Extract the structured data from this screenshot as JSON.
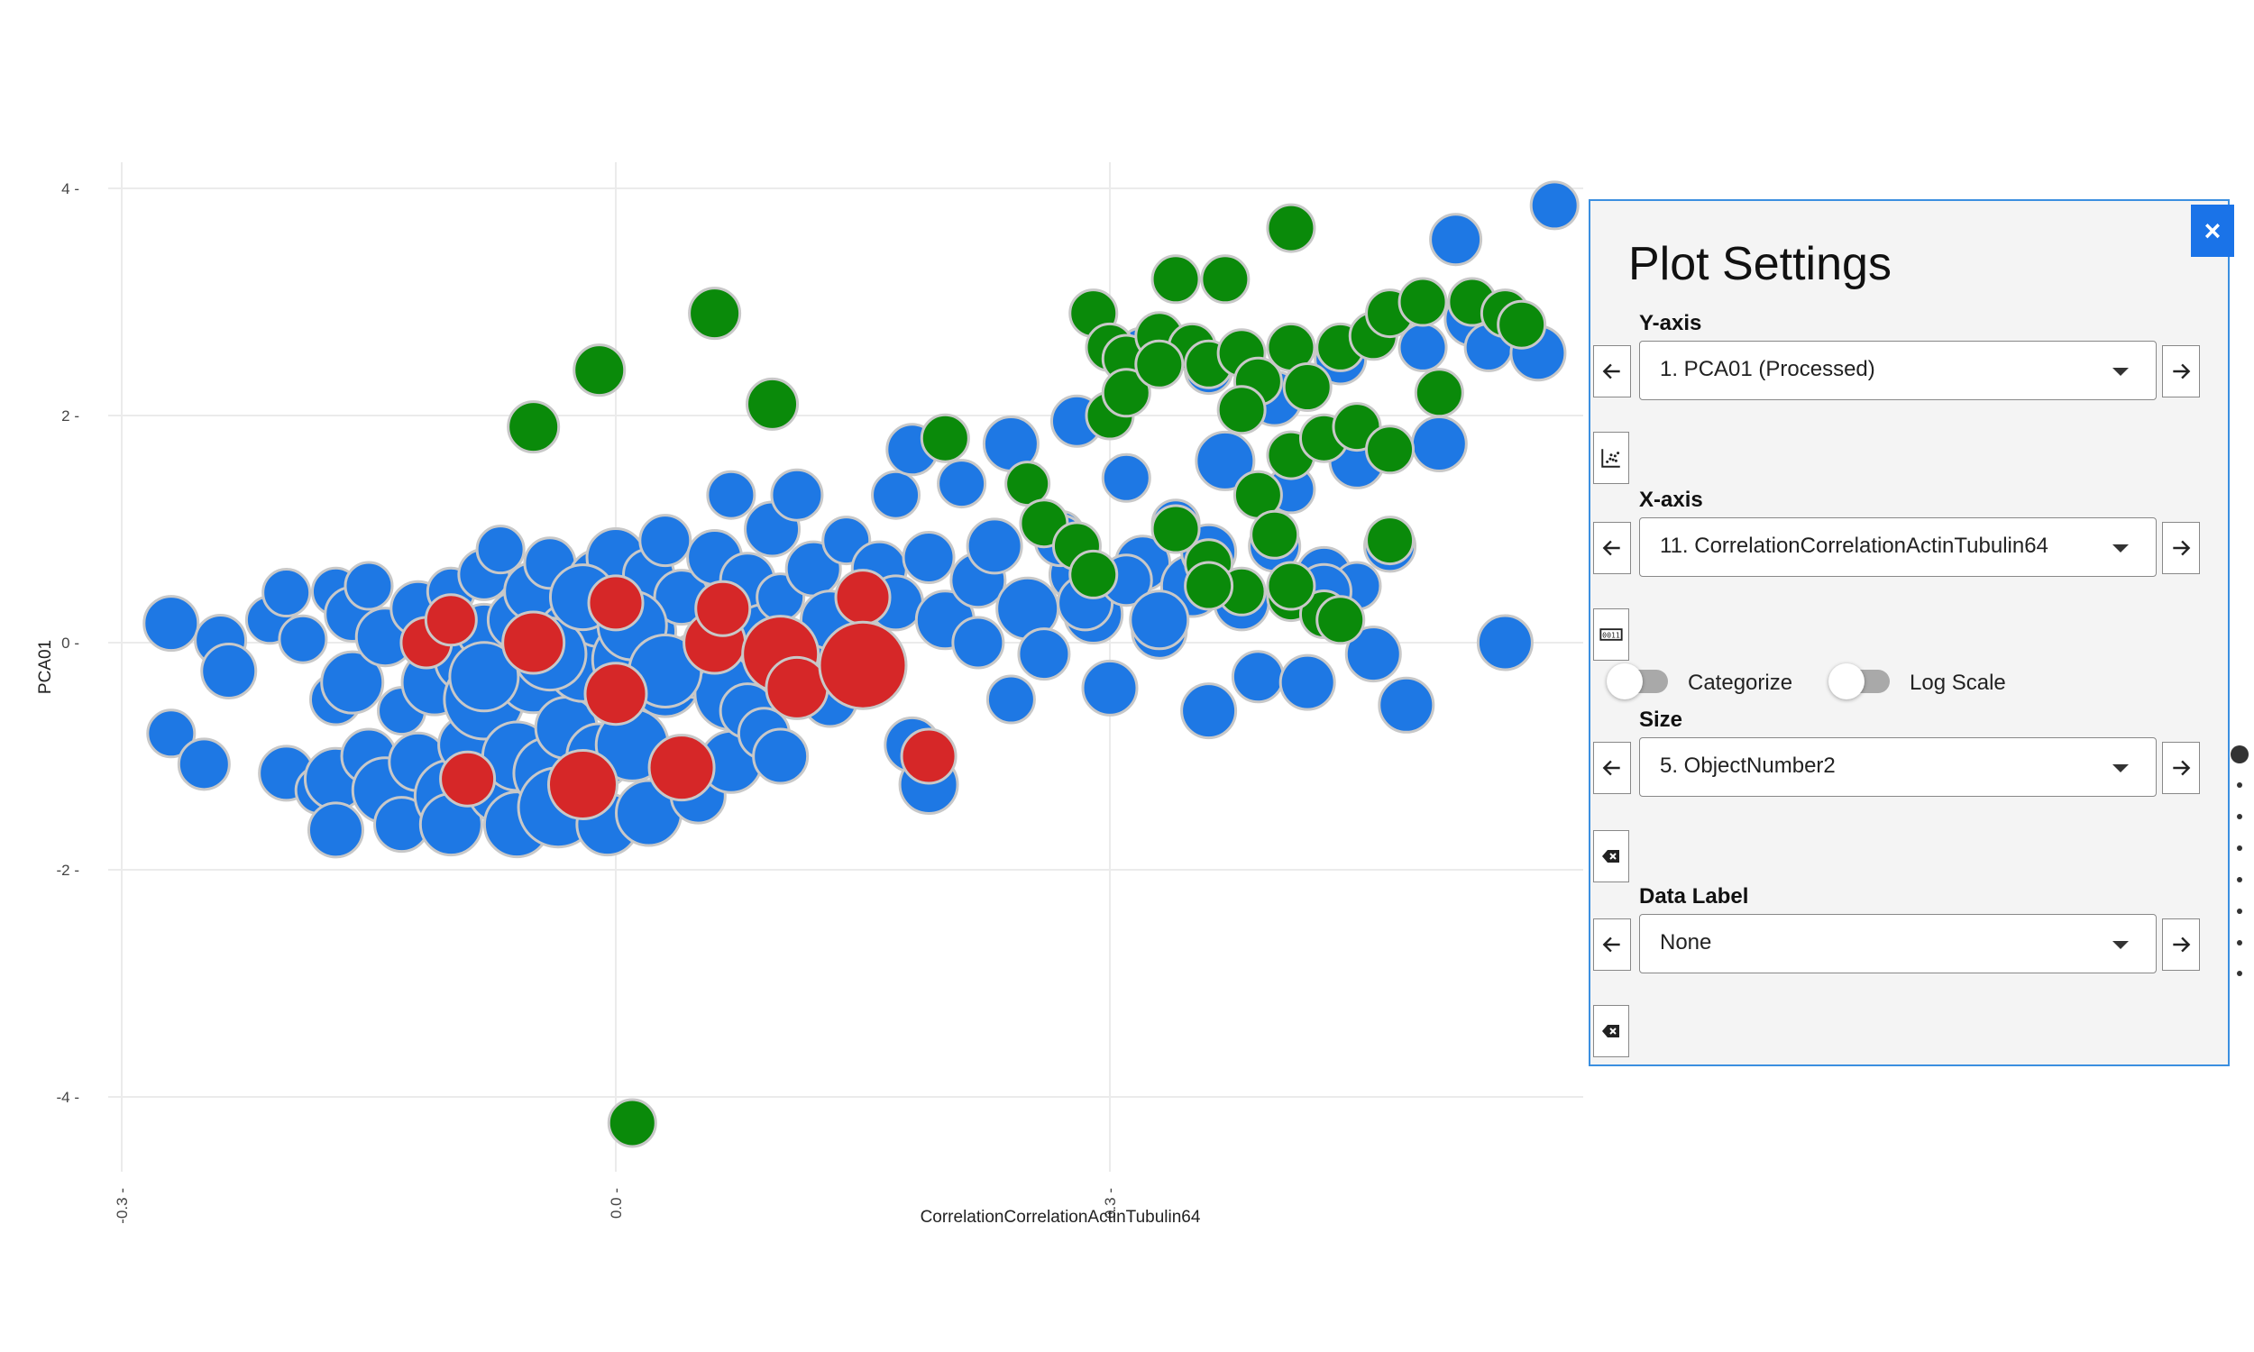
{
  "chart_data": {
    "type": "scatter",
    "xlabel": "CorrelationCorrelationActinTubulin64",
    "ylabel": "PCA01",
    "xlim": [
      -0.31,
      0.6
    ],
    "ylim": [
      -4.8,
      4.2
    ],
    "xticks": [
      -0.3,
      0.0,
      0.3
    ],
    "xtick_labels": [
      "-0.3",
      "0.0",
      "0.3"
    ],
    "yticks": [
      4,
      2,
      0,
      -2,
      -4
    ],
    "ytick_labels": [
      "4",
      "2",
      "0",
      "-2",
      "-4"
    ],
    "grid": true,
    "colors": {
      "blue": "#1e78e4",
      "red": "#d62728",
      "green": "#0a8a0a"
    },
    "points": [
      [
        -0.27,
        0.17,
        30,
        "b"
      ],
      [
        -0.27,
        -0.8,
        26,
        "b"
      ],
      [
        -0.25,
        -1.07,
        28,
        "b"
      ],
      [
        -0.24,
        0.02,
        28,
        "b"
      ],
      [
        -0.235,
        -0.25,
        30,
        "b"
      ],
      [
        -0.21,
        0.2,
        26,
        "b"
      ],
      [
        -0.2,
        0.44,
        26,
        "b"
      ],
      [
        -0.2,
        -1.15,
        30,
        "b"
      ],
      [
        -0.19,
        0.03,
        26,
        "b"
      ],
      [
        -0.18,
        -1.3,
        26,
        "b"
      ],
      [
        -0.17,
        0.45,
        26,
        "b"
      ],
      [
        -0.17,
        -0.5,
        28,
        "b"
      ],
      [
        -0.17,
        -1.2,
        34,
        "b"
      ],
      [
        -0.17,
        -1.65,
        30,
        "b"
      ],
      [
        -0.16,
        0.25,
        30,
        "b"
      ],
      [
        -0.16,
        -0.35,
        34,
        "b"
      ],
      [
        -0.15,
        0.5,
        26,
        "b"
      ],
      [
        -0.15,
        -1.0,
        30,
        "b"
      ],
      [
        -0.14,
        0.05,
        32,
        "b"
      ],
      [
        -0.14,
        -1.3,
        36,
        "b"
      ],
      [
        -0.13,
        -0.6,
        26,
        "b"
      ],
      [
        -0.13,
        -1.6,
        30,
        "b"
      ],
      [
        -0.12,
        0.3,
        30,
        "b"
      ],
      [
        -0.12,
        -1.05,
        32,
        "b"
      ],
      [
        -0.115,
        0.0,
        28,
        "r"
      ],
      [
        -0.11,
        -0.35,
        36,
        "b"
      ],
      [
        -0.1,
        0.45,
        26,
        "b"
      ],
      [
        -0.1,
        -1.35,
        40,
        "b"
      ],
      [
        -0.1,
        -1.6,
        34,
        "b"
      ],
      [
        -0.1,
        0.2,
        28,
        "r"
      ],
      [
        -0.09,
        -0.15,
        36,
        "b"
      ],
      [
        -0.09,
        -0.9,
        32,
        "b"
      ],
      [
        -0.09,
        -1.2,
        30,
        "r"
      ],
      [
        -0.08,
        0.6,
        28,
        "b"
      ],
      [
        -0.08,
        0.1,
        30,
        "b"
      ],
      [
        -0.08,
        -0.5,
        44,
        "b"
      ],
      [
        -0.07,
        0.82,
        26,
        "b"
      ],
      [
        -0.07,
        -1.3,
        36,
        "b"
      ],
      [
        -0.06,
        0.2,
        32,
        "b"
      ],
      [
        -0.06,
        -1.0,
        38,
        "b"
      ],
      [
        -0.06,
        -1.6,
        36,
        "b"
      ],
      [
        -0.05,
        0.0,
        34,
        "r"
      ],
      [
        -0.05,
        0.45,
        32,
        "b"
      ],
      [
        -0.05,
        -0.3,
        40,
        "b"
      ],
      [
        -0.04,
        -1.15,
        40,
        "b"
      ],
      [
        -0.04,
        0.7,
        28,
        "b"
      ],
      [
        -0.035,
        -1.45,
        44,
        "b"
      ],
      [
        -0.03,
        0.1,
        30,
        "b"
      ],
      [
        -0.03,
        -0.75,
        34,
        "b"
      ],
      [
        -0.02,
        -1.25,
        38,
        "r"
      ],
      [
        -0.02,
        -0.2,
        40,
        "b"
      ],
      [
        -0.01,
        0.55,
        34,
        "b"
      ],
      [
        -0.01,
        0.25,
        36,
        "b"
      ],
      [
        -0.01,
        -1.0,
        36,
        "b"
      ],
      [
        -0.005,
        -1.6,
        34,
        "b"
      ],
      [
        0.0,
        0.35,
        30,
        "r"
      ],
      [
        0.0,
        0.75,
        32,
        "b"
      ],
      [
        0.0,
        -0.45,
        34,
        "r"
      ],
      [
        0.01,
        -0.15,
        44,
        "b"
      ],
      [
        0.01,
        -0.9,
        40,
        "b"
      ],
      [
        0.02,
        0.6,
        28,
        "b"
      ],
      [
        0.02,
        -1.5,
        36,
        "b"
      ],
      [
        0.02,
        0.1,
        30,
        "b"
      ],
      [
        0.03,
        0.9,
        28,
        "b"
      ],
      [
        0.03,
        -0.35,
        38,
        "b"
      ],
      [
        0.04,
        -1.1,
        36,
        "r"
      ],
      [
        0.04,
        0.4,
        30,
        "b"
      ],
      [
        0.05,
        -0.2,
        36,
        "b"
      ],
      [
        0.05,
        -1.35,
        30,
        "b"
      ],
      [
        0.06,
        0.0,
        34,
        "r"
      ],
      [
        0.06,
        0.75,
        30,
        "b"
      ],
      [
        0.065,
        0.3,
        30,
        "r"
      ],
      [
        0.07,
        -1.05,
        34,
        "b"
      ],
      [
        0.07,
        -0.45,
        40,
        "b"
      ],
      [
        0.07,
        1.3,
        26,
        "b"
      ],
      [
        0.08,
        -0.6,
        30,
        "b"
      ],
      [
        0.08,
        0.55,
        30,
        "b"
      ],
      [
        0.09,
        -0.8,
        28,
        "b"
      ],
      [
        0.09,
        0.05,
        36,
        "b"
      ],
      [
        0.095,
        1.0,
        30,
        "b"
      ],
      [
        0.1,
        -0.1,
        42,
        "r"
      ],
      [
        0.1,
        0.4,
        26,
        "b"
      ],
      [
        0.1,
        -1.0,
        30,
        "b"
      ],
      [
        0.11,
        -0.4,
        34,
        "r"
      ],
      [
        0.11,
        1.3,
        28,
        "b"
      ],
      [
        0.12,
        0.65,
        30,
        "b"
      ],
      [
        0.12,
        -0.15,
        40,
        "b"
      ],
      [
        0.13,
        0.2,
        32,
        "b"
      ],
      [
        0.13,
        -0.5,
        30,
        "b"
      ],
      [
        0.14,
        0.9,
        26,
        "b"
      ],
      [
        0.15,
        0.4,
        30,
        "r"
      ],
      [
        0.15,
        -0.2,
        48,
        "r"
      ],
      [
        0.16,
        0.65,
        30,
        "b"
      ],
      [
        0.17,
        1.3,
        26,
        "b"
      ],
      [
        0.17,
        0.35,
        30,
        "b"
      ],
      [
        0.18,
        -0.9,
        30,
        "b"
      ],
      [
        0.18,
        1.7,
        28,
        "b"
      ],
      [
        0.19,
        -1.25,
        32,
        "b"
      ],
      [
        0.19,
        -1.0,
        30,
        "r"
      ],
      [
        0.19,
        0.75,
        28,
        "b"
      ],
      [
        0.2,
        0.2,
        32,
        "b"
      ],
      [
        0.21,
        1.4,
        26,
        "b"
      ],
      [
        0.22,
        0.55,
        30,
        "b"
      ],
      [
        0.22,
        0.0,
        28,
        "b"
      ],
      [
        0.23,
        0.85,
        30,
        "b"
      ],
      [
        0.24,
        -0.5,
        26,
        "b"
      ],
      [
        0.24,
        1.75,
        30,
        "b"
      ],
      [
        0.25,
        0.3,
        34,
        "b"
      ],
      [
        0.26,
        -0.1,
        28,
        "b"
      ],
      [
        0.27,
        0.95,
        26,
        "b"
      ],
      [
        0.28,
        0.6,
        30,
        "b"
      ],
      [
        0.28,
        1.95,
        28,
        "b"
      ],
      [
        0.29,
        0.25,
        32,
        "b"
      ],
      [
        0.3,
        -0.4,
        30,
        "b"
      ],
      [
        0.31,
        1.45,
        26,
        "b"
      ],
      [
        0.32,
        2.55,
        28,
        "b"
      ],
      [
        0.32,
        0.7,
        30,
        "b"
      ],
      [
        0.33,
        0.1,
        30,
        "b"
      ],
      [
        0.34,
        1.05,
        26,
        "b"
      ],
      [
        0.35,
        0.5,
        34,
        "b"
      ],
      [
        0.36,
        -0.6,
        30,
        "b"
      ],
      [
        0.36,
        2.4,
        26,
        "b"
      ],
      [
        0.37,
        1.6,
        32,
        "b"
      ],
      [
        0.38,
        0.35,
        30,
        "b"
      ],
      [
        0.39,
        -0.3,
        28,
        "b"
      ],
      [
        0.4,
        2.15,
        30,
        "b"
      ],
      [
        0.4,
        0.85,
        28,
        "b"
      ],
      [
        0.41,
        1.35,
        26,
        "b"
      ],
      [
        0.42,
        -0.35,
        30,
        "b"
      ],
      [
        0.43,
        0.6,
        30,
        "b"
      ],
      [
        0.44,
        2.5,
        28,
        "b"
      ],
      [
        0.45,
        1.6,
        30,
        "b"
      ],
      [
        0.46,
        -0.1,
        30,
        "b"
      ],
      [
        0.47,
        0.85,
        28,
        "b"
      ],
      [
        0.48,
        -0.55,
        30,
        "b"
      ],
      [
        0.49,
        2.6,
        26,
        "b"
      ],
      [
        0.5,
        1.75,
        30,
        "b"
      ],
      [
        0.51,
        3.55,
        28,
        "b"
      ],
      [
        0.52,
        2.85,
        30,
        "b"
      ],
      [
        0.53,
        2.6,
        26,
        "b"
      ],
      [
        0.54,
        0.0,
        30,
        "b"
      ],
      [
        0.56,
        2.55,
        30,
        "b"
      ],
      [
        0.57,
        3.85,
        26,
        "b"
      ],
      [
        0.45,
        0.5,
        26,
        "b"
      ],
      [
        0.43,
        0.45,
        30,
        "b"
      ],
      [
        0.27,
        0.9,
        28,
        "b"
      ],
      [
        0.285,
        0.35,
        30,
        "b"
      ],
      [
        0.31,
        0.55,
        28,
        "b"
      ],
      [
        0.33,
        0.2,
        32,
        "b"
      ],
      [
        0.36,
        0.8,
        30,
        "b"
      ],
      [
        -0.04,
        -0.1,
        40,
        "b"
      ],
      [
        -0.02,
        0.4,
        36,
        "b"
      ],
      [
        0.01,
        0.15,
        38,
        "b"
      ],
      [
        -0.08,
        -0.3,
        38,
        "b"
      ],
      [
        0.03,
        -0.25,
        40,
        "b"
      ],
      [
        -0.01,
        2.4,
        28,
        "g"
      ],
      [
        0.06,
        2.9,
        28,
        "g"
      ],
      [
        0.095,
        2.1,
        28,
        "g"
      ],
      [
        0.41,
        3.65,
        26,
        "g"
      ],
      [
        -0.05,
        1.9,
        28,
        "g"
      ],
      [
        0.01,
        -4.23,
        26,
        "g"
      ],
      [
        0.34,
        3.2,
        26,
        "g"
      ],
      [
        0.37,
        3.2,
        26,
        "g"
      ],
      [
        0.29,
        2.9,
        26,
        "g"
      ],
      [
        0.3,
        2.6,
        26,
        "g"
      ],
      [
        0.31,
        2.5,
        26,
        "g"
      ],
      [
        0.33,
        2.7,
        26,
        "g"
      ],
      [
        0.35,
        2.6,
        26,
        "g"
      ],
      [
        0.36,
        2.45,
        26,
        "g"
      ],
      [
        0.38,
        2.55,
        26,
        "g"
      ],
      [
        0.39,
        2.3,
        26,
        "g"
      ],
      [
        0.41,
        2.6,
        26,
        "g"
      ],
      [
        0.42,
        2.25,
        26,
        "g"
      ],
      [
        0.44,
        2.6,
        26,
        "g"
      ],
      [
        0.46,
        2.7,
        26,
        "g"
      ],
      [
        0.47,
        2.9,
        26,
        "g"
      ],
      [
        0.49,
        3.0,
        26,
        "g"
      ],
      [
        0.5,
        2.2,
        26,
        "g"
      ],
      [
        0.52,
        3.0,
        26,
        "g"
      ],
      [
        0.54,
        2.9,
        26,
        "g"
      ],
      [
        0.55,
        2.8,
        26,
        "g"
      ],
      [
        0.3,
        2.0,
        26,
        "g"
      ],
      [
        0.31,
        2.2,
        26,
        "g"
      ],
      [
        0.33,
        2.45,
        26,
        "g"
      ],
      [
        0.38,
        2.05,
        26,
        "g"
      ],
      [
        0.39,
        1.3,
        26,
        "g"
      ],
      [
        0.41,
        1.65,
        26,
        "g"
      ],
      [
        0.43,
        1.8,
        26,
        "g"
      ],
      [
        0.45,
        1.9,
        26,
        "g"
      ],
      [
        0.47,
        1.7,
        26,
        "g"
      ],
      [
        0.2,
        1.8,
        26,
        "g"
      ],
      [
        0.25,
        1.4,
        24,
        "g"
      ],
      [
        0.26,
        1.05,
        26,
        "g"
      ],
      [
        0.28,
        0.85,
        26,
        "g"
      ],
      [
        0.29,
        0.6,
        26,
        "g"
      ],
      [
        0.34,
        1.0,
        26,
        "g"
      ],
      [
        0.36,
        0.7,
        26,
        "g"
      ],
      [
        0.38,
        0.45,
        26,
        "g"
      ],
      [
        0.4,
        0.95,
        26,
        "g"
      ],
      [
        0.41,
        0.4,
        26,
        "g"
      ],
      [
        0.43,
        0.25,
        26,
        "g"
      ],
      [
        0.44,
        0.2,
        26,
        "g"
      ],
      [
        0.41,
        0.5,
        26,
        "g"
      ],
      [
        0.36,
        0.5,
        26,
        "g"
      ],
      [
        0.47,
        0.9,
        26,
        "g"
      ]
    ]
  },
  "panel": {
    "title": "Plot Settings",
    "close_label": "×",
    "y_axis": {
      "label": "Y-axis",
      "value": "1. PCA01 (Processed)"
    },
    "x_axis": {
      "label": "X-axis",
      "value": "11. CorrelationCorrelationActinTubulin64"
    },
    "categorize_label": "Categorize",
    "log_scale_label": "Log Scale",
    "size": {
      "label": "Size",
      "value": "5. ObjectNumber2"
    },
    "data_label": {
      "label": "Data Label",
      "value": "None"
    }
  }
}
